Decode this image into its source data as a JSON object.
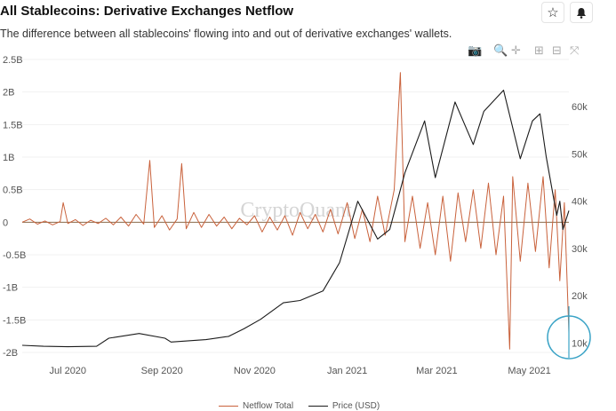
{
  "header": {
    "title": "All Stablecoins: Derivative Exchanges Netflow",
    "subtitle": "The difference between all stablecoins' flowing into and out of derivative exchanges' wallets.",
    "star_icon": "star-icon",
    "bell_icon": "bell-icon"
  },
  "modebar": {
    "icons": [
      "camera-icon",
      "zoom-icon",
      "pan-icon",
      "zoom-in-icon",
      "zoom-out-icon",
      "autoscale-icon"
    ]
  },
  "watermark": "CryptoQuant",
  "colors": {
    "netflow": "#c9623c",
    "price": "#1b1b1b",
    "zero_line": "#8a6a4a",
    "circle": "#3aa3c6"
  },
  "chart_data": {
    "type": "line",
    "x_ticks": [
      "Jul 2020",
      "Sep 2020",
      "Nov 2020",
      "Jan 2021",
      "Mar 2021",
      "May 2021"
    ],
    "x_tick_dates": [
      "2020-07-01",
      "2020-09-01",
      "2020-11-01",
      "2021-01-01",
      "2021-03-01",
      "2021-05-01"
    ],
    "x_range": [
      "2020-06-01",
      "2021-05-27"
    ],
    "y_left_ticks": [
      "2.5B",
      "2B",
      "1.5B",
      "1B",
      "0.5B",
      "0",
      "-0.5B",
      "-1B",
      "-1.5B",
      "-2B"
    ],
    "y_left_range": [
      -2000000000,
      2500000000
    ],
    "y_right_ticks": [
      "60k",
      "50k",
      "40k",
      "30k",
      "20k",
      "10k"
    ],
    "y_right_range": [
      8000,
      70000
    ],
    "legend_position": "bottom",
    "series": [
      {
        "name": "Netflow Total",
        "axis": "left",
        "points": [
          [
            "2020-06-01",
            0
          ],
          [
            "2020-06-06",
            50000000
          ],
          [
            "2020-06-11",
            -30000000
          ],
          [
            "2020-06-16",
            20000000
          ],
          [
            "2020-06-21",
            -40000000
          ],
          [
            "2020-06-26",
            10000000
          ],
          [
            "2020-06-28",
            300000000
          ],
          [
            "2020-07-01",
            -20000000
          ],
          [
            "2020-07-06",
            40000000
          ],
          [
            "2020-07-11",
            -50000000
          ],
          [
            "2020-07-16",
            30000000
          ],
          [
            "2020-07-21",
            -20000000
          ],
          [
            "2020-07-26",
            60000000
          ],
          [
            "2020-07-31",
            -40000000
          ],
          [
            "2020-08-05",
            80000000
          ],
          [
            "2020-08-10",
            -60000000
          ],
          [
            "2020-08-15",
            120000000
          ],
          [
            "2020-08-20",
            -30000000
          ],
          [
            "2020-08-24",
            950000000
          ],
          [
            "2020-08-27",
            -80000000
          ],
          [
            "2020-09-01",
            100000000
          ],
          [
            "2020-09-06",
            -120000000
          ],
          [
            "2020-09-11",
            50000000
          ],
          [
            "2020-09-14",
            900000000
          ],
          [
            "2020-09-17",
            -100000000
          ],
          [
            "2020-09-22",
            150000000
          ],
          [
            "2020-09-27",
            -80000000
          ],
          [
            "2020-10-02",
            120000000
          ],
          [
            "2020-10-07",
            -60000000
          ],
          [
            "2020-10-12",
            80000000
          ],
          [
            "2020-10-17",
            -100000000
          ],
          [
            "2020-10-22",
            60000000
          ],
          [
            "2020-10-27",
            -40000000
          ],
          [
            "2020-11-01",
            100000000
          ],
          [
            "2020-11-06",
            -150000000
          ],
          [
            "2020-11-11",
            80000000
          ],
          [
            "2020-11-16",
            -120000000
          ],
          [
            "2020-11-21",
            100000000
          ],
          [
            "2020-11-26",
            -200000000
          ],
          [
            "2020-12-01",
            150000000
          ],
          [
            "2020-12-06",
            -100000000
          ],
          [
            "2020-12-11",
            120000000
          ],
          [
            "2020-12-16",
            -150000000
          ],
          [
            "2020-12-21",
            200000000
          ],
          [
            "2020-12-26",
            -180000000
          ],
          [
            "2021-01-01",
            300000000
          ],
          [
            "2021-01-06",
            -250000000
          ],
          [
            "2021-01-11",
            200000000
          ],
          [
            "2021-01-16",
            -300000000
          ],
          [
            "2021-01-21",
            400000000
          ],
          [
            "2021-01-26",
            -200000000
          ],
          [
            "2021-02-01",
            500000000
          ],
          [
            "2021-02-05",
            2300000000
          ],
          [
            "2021-02-08",
            -300000000
          ],
          [
            "2021-02-13",
            400000000
          ],
          [
            "2021-02-18",
            -400000000
          ],
          [
            "2021-02-23",
            300000000
          ],
          [
            "2021-02-28",
            -500000000
          ],
          [
            "2021-03-05",
            400000000
          ],
          [
            "2021-03-10",
            -600000000
          ],
          [
            "2021-03-15",
            450000000
          ],
          [
            "2021-03-20",
            -300000000
          ],
          [
            "2021-03-25",
            500000000
          ],
          [
            "2021-03-30",
            -400000000
          ],
          [
            "2021-04-04",
            600000000
          ],
          [
            "2021-04-09",
            -500000000
          ],
          [
            "2021-04-14",
            400000000
          ],
          [
            "2021-04-18",
            -1950000000
          ],
          [
            "2021-04-20",
            700000000
          ],
          [
            "2021-04-25",
            -600000000
          ],
          [
            "2021-04-30",
            600000000
          ],
          [
            "2021-05-05",
            -450000000
          ],
          [
            "2021-05-10",
            700000000
          ],
          [
            "2021-05-14",
            -700000000
          ],
          [
            "2021-05-18",
            500000000
          ],
          [
            "2021-05-21",
            -900000000
          ],
          [
            "2021-05-24",
            300000000
          ],
          [
            "2021-05-27",
            -1700000000
          ]
        ]
      },
      {
        "name": "Price (USD)",
        "axis": "right",
        "points": [
          [
            "2020-06-01",
            9500
          ],
          [
            "2020-06-15",
            9300
          ],
          [
            "2020-07-01",
            9200
          ],
          [
            "2020-07-20",
            9300
          ],
          [
            "2020-07-28",
            11000
          ],
          [
            "2020-08-17",
            12000
          ],
          [
            "2020-09-03",
            11000
          ],
          [
            "2020-09-07",
            10200
          ],
          [
            "2020-09-30",
            10700
          ],
          [
            "2020-10-15",
            11400
          ],
          [
            "2020-10-25",
            13000
          ],
          [
            "2020-11-05",
            15000
          ],
          [
            "2020-11-20",
            18500
          ],
          [
            "2020-12-01",
            19000
          ],
          [
            "2020-12-16",
            21000
          ],
          [
            "2020-12-27",
            27000
          ],
          [
            "2021-01-08",
            40000
          ],
          [
            "2021-01-21",
            32000
          ],
          [
            "2021-01-29",
            34000
          ],
          [
            "2021-02-08",
            46000
          ],
          [
            "2021-02-21",
            57000
          ],
          [
            "2021-02-28",
            45000
          ],
          [
            "2021-03-13",
            61000
          ],
          [
            "2021-03-25",
            52000
          ],
          [
            "2021-04-01",
            59000
          ],
          [
            "2021-04-14",
            63500
          ],
          [
            "2021-04-25",
            49000
          ],
          [
            "2021-05-03",
            57000
          ],
          [
            "2021-05-08",
            58500
          ],
          [
            "2021-05-12",
            49500
          ],
          [
            "2021-05-19",
            37000
          ],
          [
            "2021-05-21",
            40000
          ],
          [
            "2021-05-23",
            34000
          ],
          [
            "2021-05-27",
            38000
          ]
        ]
      }
    ]
  },
  "legend": {
    "netflow_label": "Netflow Total",
    "price_label": "Price (USD)"
  }
}
